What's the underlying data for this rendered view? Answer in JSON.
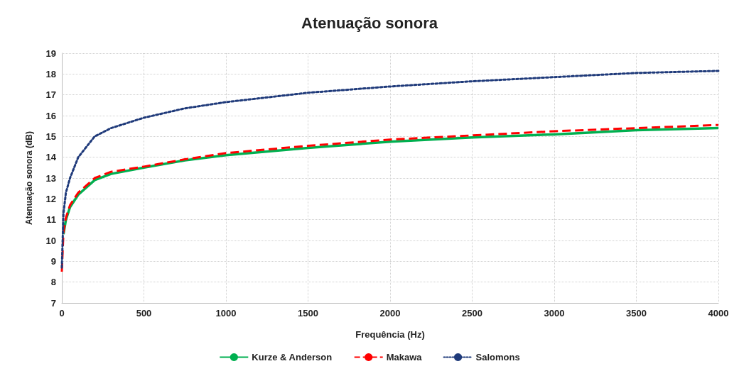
{
  "chart_data": {
    "type": "line",
    "title": "Atenuação sonora",
    "xlabel": "Frequência (Hz)",
    "ylabel": "Atenuação sonora (dB)",
    "x": [
      0,
      10,
      25,
      50,
      100,
      200,
      300,
      500,
      750,
      1000,
      1500,
      2000,
      2500,
      3000,
      3500,
      4000
    ],
    "series": [
      {
        "name": "Kurze & Anderson",
        "color": "#00b050",
        "line_style": "solid",
        "values": [
          null,
          10.3,
          11.0,
          11.6,
          12.2,
          12.9,
          13.2,
          13.5,
          13.85,
          14.1,
          14.45,
          14.75,
          14.95,
          15.1,
          15.3,
          15.4
        ]
      },
      {
        "name": "Makawa",
        "color": "#ff0000",
        "line_style": "dashed",
        "values": [
          8.5,
          10.4,
          11.1,
          11.7,
          12.3,
          13.0,
          13.3,
          13.55,
          13.9,
          14.2,
          14.55,
          14.85,
          15.05,
          15.25,
          15.4,
          15.55
        ]
      },
      {
        "name": "Salomons",
        "color": "#1f3a7a",
        "line_style": "dotted",
        "values": [
          8.7,
          11.3,
          12.3,
          13.0,
          14.0,
          15.0,
          15.4,
          15.9,
          16.35,
          16.65,
          17.1,
          17.4,
          17.65,
          17.85,
          18.05,
          18.15
        ]
      }
    ],
    "xlim": [
      0,
      4000
    ],
    "xticks": [
      0,
      500,
      1000,
      1500,
      2000,
      2500,
      3000,
      3500,
      4000
    ],
    "ylim": [
      7,
      19
    ],
    "yticks": [
      7,
      8,
      9,
      10,
      11,
      12,
      13,
      14,
      15,
      16,
      17,
      18,
      19
    ],
    "grid": true,
    "legend": "bottom",
    "marker": "none"
  }
}
